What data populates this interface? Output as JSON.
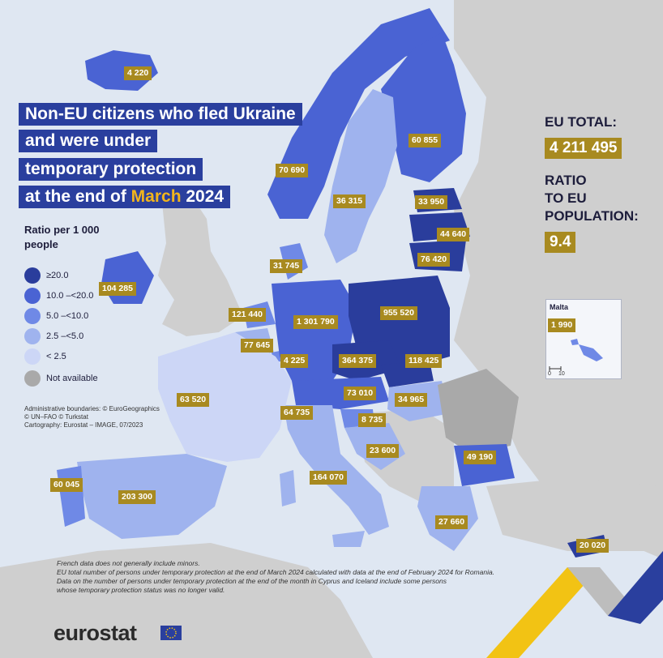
{
  "title": {
    "line1": "Non-EU citizens who fled Ukraine",
    "line2": "and were under",
    "line3": "temporary protection",
    "line4_prefix": "at the end of ",
    "line4_month": "March",
    "line4_suffix": " 2024"
  },
  "legend": {
    "title": "Ratio per 1 000 people",
    "items": [
      {
        "label": "≥20.0",
        "color": "#2a3d9c"
      },
      {
        "label": "10.0 –<20.0",
        "color": "#4a63d3"
      },
      {
        "label": "5.0 –<10.0",
        "color": "#6f89e6"
      },
      {
        "label": "2.5 –<5.0",
        "color": "#9fb3ee"
      },
      {
        "label": "< 2.5",
        "color": "#ccd6f6"
      },
      {
        "label": "Not available",
        "color": "#a9a9a9"
      }
    ]
  },
  "eu_total": {
    "label": "EU TOTAL:",
    "value": "4 211 495",
    "ratio_label_1": "RATIO",
    "ratio_label_2": "TO EU",
    "ratio_label_3": "POPULATION:",
    "ratio_value": "9.4"
  },
  "malta_inset": {
    "name": "Malta",
    "value": "1 990",
    "scale_0": "0",
    "scale_10": "10"
  },
  "credits": {
    "line1": "Administrative boundaries: © EuroGeographics",
    "line2": "© UN–FAO © Turkstat",
    "line3": "Cartography: Eurostat – IMAGE, 07/2023"
  },
  "notes": {
    "line1": "French data does not generally include minors.",
    "line2": "EU total number of persons under temporary protection at the end of March 2024 calculated with data at the end of February 2024 for Romania.",
    "line3": "Data on the number of persons under temporary protection at the end of the month in Cyprus and Iceland include some persons",
    "line4": "whose temporary protection status was no longer valid."
  },
  "logo": {
    "text": "eurostat"
  },
  "country_labels": [
    {
      "value": "4 220"
    },
    {
      "value": "60 855"
    },
    {
      "value": "70 690"
    },
    {
      "value": "36 315"
    },
    {
      "value": "33 950"
    },
    {
      "value": "44 640"
    },
    {
      "value": "76 420"
    },
    {
      "value": "31 745"
    },
    {
      "value": "104 285"
    },
    {
      "value": "121 440"
    },
    {
      "value": "1 301 790"
    },
    {
      "value": "955 520"
    },
    {
      "value": "77 645"
    },
    {
      "value": "4 225"
    },
    {
      "value": "364 375"
    },
    {
      "value": "118 425"
    },
    {
      "value": "63 520"
    },
    {
      "value": "73 010"
    },
    {
      "value": "34 965"
    },
    {
      "value": "64 735"
    },
    {
      "value": "8 735"
    },
    {
      "value": "23 600"
    },
    {
      "value": "49 190"
    },
    {
      "value": "164 070"
    },
    {
      "value": "60 045"
    },
    {
      "value": "203 300"
    },
    {
      "value": "27 660"
    },
    {
      "value": "20 020"
    }
  ]
}
